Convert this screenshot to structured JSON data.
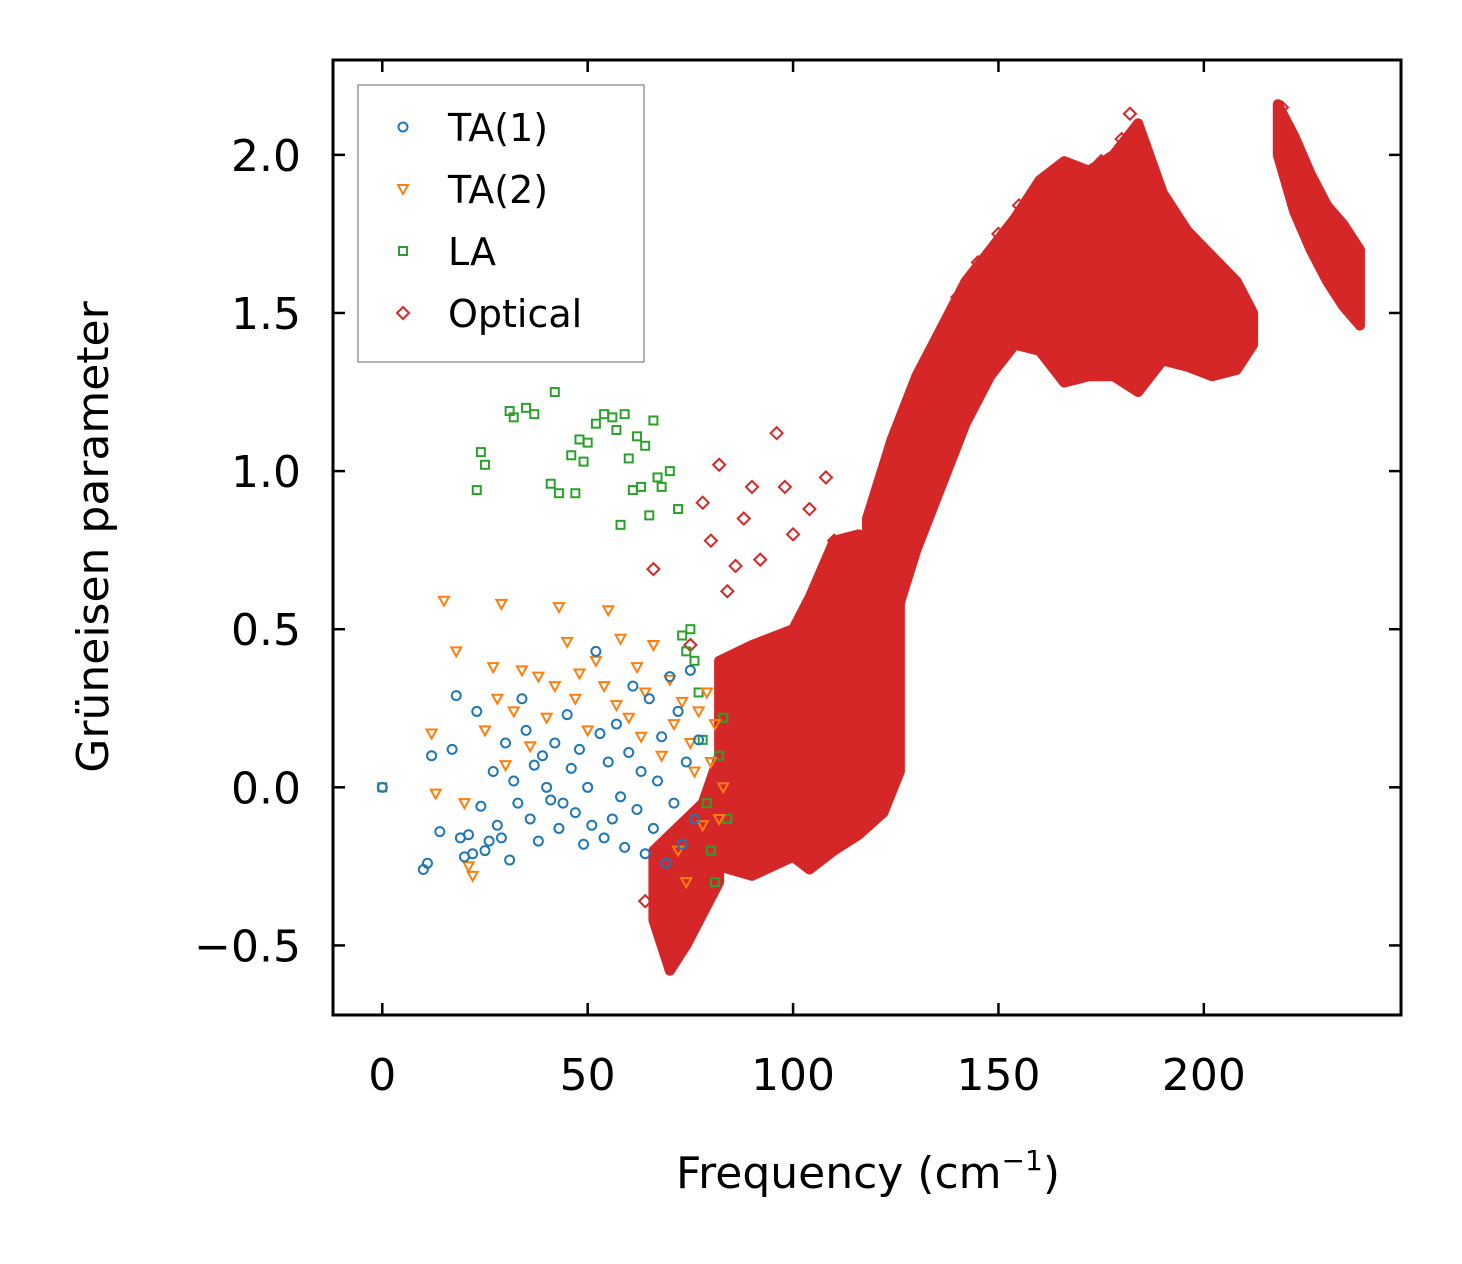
{
  "chart_data": {
    "type": "scatter",
    "title": "",
    "xlabel": "Frequency (cm",
    "xlabel_sup": "−1",
    "xlabel_close": ")",
    "ylabel": "Grüneisen parameter",
    "xlim": [
      -12,
      248
    ],
    "ylim": [
      -0.72,
      2.3
    ],
    "xticks": [
      0,
      50,
      100,
      150,
      200
    ],
    "xtick_labels": [
      "0",
      "50",
      "100",
      "150",
      "200"
    ],
    "yticks": [
      -0.5,
      0.0,
      0.5,
      1.0,
      1.5,
      2.0
    ],
    "ytick_labels": [
      "−0.5",
      "0.0",
      "0.5",
      "1.0",
      "1.5",
      "2.0"
    ],
    "legend_position": "top-left",
    "series": [
      {
        "name": "TA(1)",
        "marker": "circle",
        "color": "#1f77b4",
        "points": [
          [
            0,
            0.0
          ],
          [
            10,
            -0.26
          ],
          [
            11,
            -0.24
          ],
          [
            12,
            0.1
          ],
          [
            14,
            -0.14
          ],
          [
            17,
            0.12
          ],
          [
            18,
            0.29
          ],
          [
            19,
            -0.16
          ],
          [
            20,
            -0.22
          ],
          [
            21,
            -0.15
          ],
          [
            22,
            -0.21
          ],
          [
            23,
            0.24
          ],
          [
            24,
            -0.06
          ],
          [
            25,
            -0.2
          ],
          [
            26,
            -0.17
          ],
          [
            27,
            0.05
          ],
          [
            28,
            -0.12
          ],
          [
            29,
            -0.16
          ],
          [
            30,
            0.14
          ],
          [
            31,
            -0.23
          ],
          [
            32,
            0.02
          ],
          [
            33,
            -0.05
          ],
          [
            34,
            0.28
          ],
          [
            35,
            0.18
          ],
          [
            36,
            -0.1
          ],
          [
            37,
            0.07
          ],
          [
            38,
            -0.17
          ],
          [
            39,
            0.1
          ],
          [
            40,
            0.0
          ],
          [
            41,
            -0.04
          ],
          [
            42,
            0.14
          ],
          [
            43,
            -0.13
          ],
          [
            44,
            -0.05
          ],
          [
            45,
            0.23
          ],
          [
            46,
            0.06
          ],
          [
            47,
            -0.08
          ],
          [
            48,
            0.12
          ],
          [
            49,
            -0.18
          ],
          [
            50,
            0.0
          ],
          [
            51,
            -0.12
          ],
          [
            52,
            0.43
          ],
          [
            53,
            0.17
          ],
          [
            54,
            -0.16
          ],
          [
            55,
            0.08
          ],
          [
            56,
            -0.1
          ],
          [
            57,
            0.2
          ],
          [
            58,
            -0.03
          ],
          [
            59,
            -0.19
          ],
          [
            60,
            0.11
          ],
          [
            61,
            0.32
          ],
          [
            62,
            -0.07
          ],
          [
            63,
            0.05
          ],
          [
            64,
            -0.21
          ],
          [
            65,
            0.28
          ],
          [
            66,
            -0.13
          ],
          [
            67,
            0.02
          ],
          [
            68,
            0.16
          ],
          [
            69,
            -0.24
          ],
          [
            70,
            0.35
          ],
          [
            71,
            -0.05
          ],
          [
            72,
            0.24
          ],
          [
            73,
            -0.18
          ],
          [
            74,
            0.08
          ],
          [
            75,
            0.37
          ],
          [
            76,
            -0.1
          ],
          [
            77,
            0.15
          ]
        ]
      },
      {
        "name": "TA(2)",
        "marker": "triangle-down",
        "color": "#ff7f0e",
        "points": [
          [
            12,
            0.17
          ],
          [
            13,
            -0.02
          ],
          [
            15,
            0.59
          ],
          [
            18,
            0.43
          ],
          [
            20,
            -0.05
          ],
          [
            21,
            -0.25
          ],
          [
            22,
            -0.28
          ],
          [
            25,
            0.18
          ],
          [
            27,
            0.38
          ],
          [
            28,
            0.28
          ],
          [
            29,
            0.58
          ],
          [
            30,
            0.07
          ],
          [
            32,
            0.24
          ],
          [
            34,
            0.37
          ],
          [
            36,
            0.13
          ],
          [
            38,
            0.35
          ],
          [
            40,
            0.22
          ],
          [
            42,
            0.32
          ],
          [
            43,
            0.57
          ],
          [
            45,
            0.46
          ],
          [
            47,
            0.28
          ],
          [
            48,
            0.36
          ],
          [
            50,
            0.18
          ],
          [
            52,
            0.4
          ],
          [
            54,
            0.32
          ],
          [
            55,
            0.56
          ],
          [
            57,
            0.26
          ],
          [
            58,
            0.47
          ],
          [
            60,
            0.22
          ],
          [
            62,
            0.38
          ],
          [
            63,
            0.16
          ],
          [
            64,
            0.3
          ],
          [
            66,
            0.45
          ],
          [
            68,
            0.1
          ],
          [
            70,
            0.34
          ],
          [
            71,
            0.2
          ],
          [
            72,
            -0.2
          ],
          [
            73,
            0.27
          ],
          [
            74,
            -0.3
          ],
          [
            75,
            0.14
          ],
          [
            76,
            0.05
          ],
          [
            77,
            0.24
          ],
          [
            78,
            -0.12
          ],
          [
            79,
            0.3
          ],
          [
            80,
            0.08
          ],
          [
            81,
            0.2
          ],
          [
            82,
            -0.1
          ],
          [
            83,
            0.0
          ]
        ]
      },
      {
        "name": "LA",
        "marker": "square",
        "color": "#2ca02c",
        "points": [
          [
            0,
            0.0
          ],
          [
            23,
            0.94
          ],
          [
            24,
            1.06
          ],
          [
            25,
            1.02
          ],
          [
            31,
            1.19
          ],
          [
            32,
            1.17
          ],
          [
            35,
            1.2
          ],
          [
            37,
            1.18
          ],
          [
            41,
            0.96
          ],
          [
            42,
            1.25
          ],
          [
            43,
            0.93
          ],
          [
            46,
            1.05
          ],
          [
            47,
            0.93
          ],
          [
            48,
            1.1
          ],
          [
            49,
            1.03
          ],
          [
            50,
            1.09
          ],
          [
            52,
            1.15
          ],
          [
            54,
            1.18
          ],
          [
            56,
            1.17
          ],
          [
            57,
            1.13
          ],
          [
            58,
            0.83
          ],
          [
            59,
            1.18
          ],
          [
            60,
            1.04
          ],
          [
            61,
            0.94
          ],
          [
            62,
            1.11
          ],
          [
            63,
            0.95
          ],
          [
            64,
            1.08
          ],
          [
            65,
            0.86
          ],
          [
            66,
            1.16
          ],
          [
            67,
            0.98
          ],
          [
            68,
            0.95
          ],
          [
            70,
            1.0
          ],
          [
            72,
            0.88
          ],
          [
            73,
            0.48
          ],
          [
            74,
            0.43
          ],
          [
            75,
            0.5
          ],
          [
            76,
            0.4
          ],
          [
            77,
            0.3
          ],
          [
            78,
            0.15
          ],
          [
            79,
            -0.05
          ],
          [
            80,
            -0.2
          ],
          [
            81,
            -0.3
          ],
          [
            82,
            0.1
          ],
          [
            83,
            0.22
          ],
          [
            84,
            -0.1
          ]
        ]
      },
      {
        "name": "Optical",
        "marker": "diamond",
        "color": "#d62728",
        "points": [
          [
            64,
            -0.36
          ],
          [
            66,
            0.69
          ],
          [
            68,
            -0.3
          ],
          [
            70,
            -0.55
          ],
          [
            72,
            -0.45
          ],
          [
            75,
            0.45
          ],
          [
            78,
            0.9
          ],
          [
            80,
            0.78
          ],
          [
            82,
            1.02
          ],
          [
            84,
            0.62
          ],
          [
            86,
            0.7
          ],
          [
            88,
            0.85
          ],
          [
            90,
            0.95
          ],
          [
            92,
            0.72
          ],
          [
            96,
            1.12
          ],
          [
            98,
            0.95
          ],
          [
            100,
            0.8
          ],
          [
            104,
            0.88
          ],
          [
            108,
            0.98
          ],
          [
            110,
            0.78
          ],
          [
            112,
            0.62
          ],
          [
            115,
            0.52
          ],
          [
            118,
            0.48
          ],
          [
            120,
            0.55
          ],
          [
            122,
            0.58
          ],
          [
            125,
            0.66
          ],
          [
            128,
            1.05
          ],
          [
            131,
            1.22
          ],
          [
            134,
            1.3
          ],
          [
            137,
            1.44
          ],
          [
            140,
            1.55
          ],
          [
            145,
            1.66
          ],
          [
            150,
            1.75
          ],
          [
            155,
            1.84
          ],
          [
            160,
            1.9
          ],
          [
            165,
            1.95
          ],
          [
            170,
            1.92
          ],
          [
            175,
            1.98
          ],
          [
            180,
            2.05
          ],
          [
            182,
            2.13
          ],
          [
            185,
            1.85
          ],
          [
            190,
            1.75
          ],
          [
            195,
            1.68
          ],
          [
            200,
            1.55
          ],
          [
            205,
            1.5
          ],
          [
            210,
            1.4
          ],
          [
            219,
            2.15
          ],
          [
            222,
            2.0
          ],
          [
            225,
            1.9
          ],
          [
            228,
            1.82
          ],
          [
            231,
            1.72
          ],
          [
            234,
            1.62
          ],
          [
            237,
            1.55
          ]
        ],
        "bands": [
          {
            "x": [
              82,
              90,
              100,
              104,
              110,
              116,
              122,
              126
            ],
            "lo": [
              -0.25,
              -0.28,
              -0.22,
              -0.26,
              -0.2,
              -0.15,
              -0.08,
              0.05
            ],
            "hi": [
              0.4,
              0.45,
              0.5,
              0.6,
              0.78,
              0.8,
              0.65,
              0.62
            ]
          },
          {
            "x": [
              66,
              70,
              74,
              78,
              82
            ],
            "lo": [
              -0.42,
              -0.58,
              -0.5,
              -0.4,
              -0.3
            ],
            "hi": [
              -0.2,
              -0.15,
              -0.1,
              -0.05,
              0.1
            ]
          },
          {
            "x": [
              118,
              124,
              130,
              136,
              142,
              148,
              154,
              160,
              166,
              172,
              178,
              184,
              190,
              196,
              202,
              208,
              212
            ],
            "lo": [
              0.2,
              0.5,
              0.75,
              0.95,
              1.15,
              1.3,
              1.4,
              1.38,
              1.28,
              1.3,
              1.3,
              1.25,
              1.35,
              1.33,
              1.3,
              1.32,
              1.4
            ],
            "hi": [
              0.85,
              1.1,
              1.3,
              1.45,
              1.6,
              1.7,
              1.8,
              1.92,
              1.98,
              1.95,
              2.0,
              2.1,
              1.88,
              1.76,
              1.68,
              1.6,
              1.5
            ]
          },
          {
            "x": [
              218,
              222,
              226,
              230,
              234,
              238
            ],
            "lo": [
              2.0,
              1.82,
              1.7,
              1.6,
              1.52,
              1.46
            ],
            "hi": [
              2.16,
              2.06,
              1.94,
              1.84,
              1.78,
              1.7
            ]
          }
        ]
      }
    ]
  }
}
